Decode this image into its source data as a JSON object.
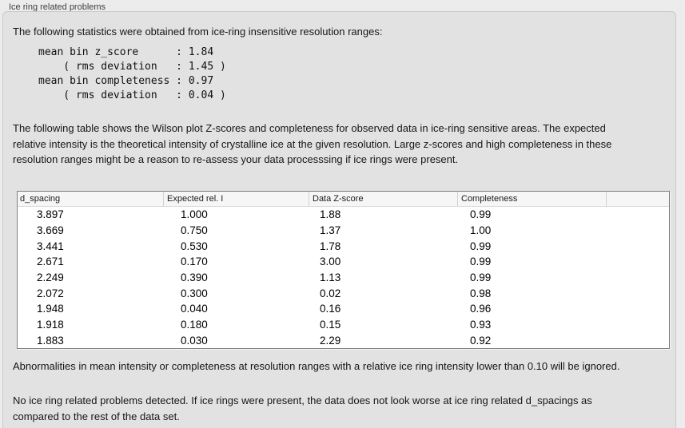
{
  "window": {
    "title": "Ice ring related problems"
  },
  "intro": {
    "text": "The following statistics were obtained from ice-ring insensitive resolution ranges:",
    "stats_lines": [
      "mean bin z_score      : 1.84",
      "    ( rms deviation   : 1.45 )",
      "mean bin completeness : 0.97",
      "    ( rms deviation   : 0.04 )"
    ]
  },
  "description": {
    "text": "The following table shows the Wilson plot Z-scores and completeness for observed data in ice-ring sensitive areas. The expected relative intensity is the theoretical intensity of crystalline ice at the given resolution. Large z-scores and high completeness in these resolution ranges might be a reason to re-assess your data processsing if ice rings were present."
  },
  "table": {
    "columns": [
      "d_spacing",
      "Expected rel. I",
      "Data Z-score",
      "Completeness",
      ""
    ],
    "rows": [
      [
        "3.897",
        "1.000",
        "1.88",
        "0.99"
      ],
      [
        "3.669",
        "0.750",
        "1.37",
        "1.00"
      ],
      [
        "3.441",
        "0.530",
        "1.78",
        "0.99"
      ],
      [
        "2.671",
        "0.170",
        "3.00",
        "0.99"
      ],
      [
        "2.249",
        "0.390",
        "1.13",
        "0.99"
      ],
      [
        "2.072",
        "0.300",
        "0.02",
        "0.98"
      ],
      [
        "1.948",
        "0.040",
        "0.16",
        "0.96"
      ],
      [
        "1.918",
        "0.180",
        "0.15",
        "0.93"
      ],
      [
        "1.883",
        "0.030",
        "2.29",
        "0.92"
      ]
    ]
  },
  "notes": [
    "Abnormalities in mean intensity or completeness at resolution ranges with a relative ice ring intensity lower than 0.10 will be ignored.",
    "No ice ring related problems detected. If ice rings were present, the data does not look worse at ice ring related d_spacings as compared to the rest of the data set."
  ],
  "colors": {
    "page_bg": "#ececec",
    "panel_bg": "#e2e2e2",
    "panel_border": "#c9c9c9",
    "table_border": "#7e7e7e",
    "table_header_bg": "#f6f6f6",
    "text": "#161616"
  }
}
